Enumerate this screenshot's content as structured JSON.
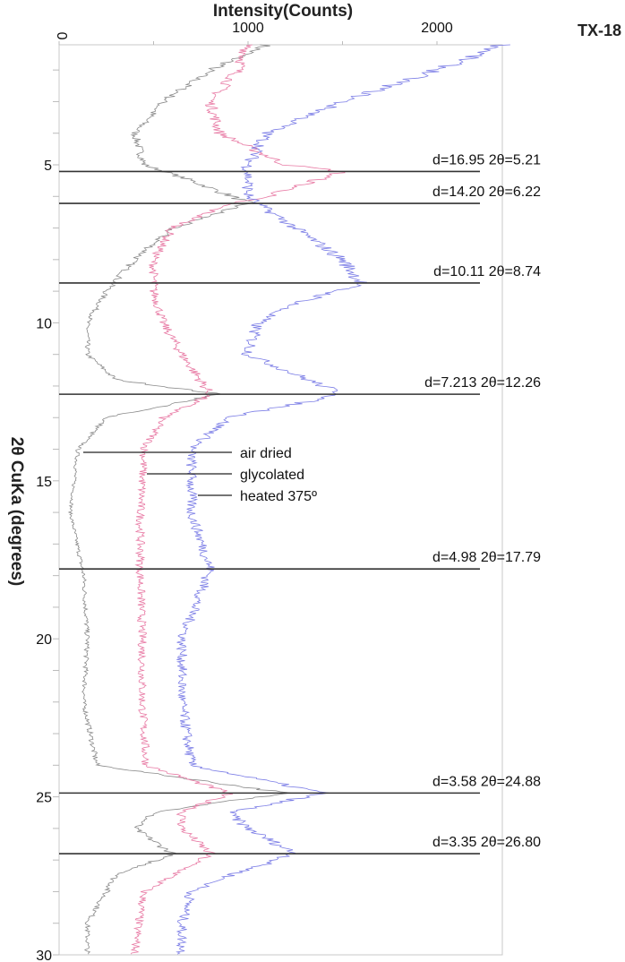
{
  "chart_data": {
    "type": "line",
    "orientation": "vertical (2θ on vertical axis increasing downward, intensity on horizontal axis)",
    "title": "Intensity(Counts)",
    "sample_id": "TX-18",
    "xlabel": "Intensity(Counts)",
    "ylabel": "2θ CuKa (degrees)",
    "xlim": [
      0,
      2350
    ],
    "ylim": [
      1.2,
      30
    ],
    "x_ticks": [
      0,
      500,
      1000,
      1500,
      2000
    ],
    "x_tick_labels": [
      "0",
      "",
      "1000",
      "",
      "2000"
    ],
    "y_ticks": [
      2,
      3,
      4,
      5,
      6,
      7,
      8,
      9,
      10,
      11,
      12,
      13,
      14,
      15,
      16,
      17,
      18,
      19,
      20,
      21,
      22,
      23,
      24,
      25,
      26,
      27,
      28,
      29,
      30
    ],
    "y_tick_labels": [
      "5",
      "10",
      "15",
      "20",
      "25",
      "30"
    ],
    "grid": false,
    "series": [
      {
        "name": "air dried",
        "color": "#8a8a8a",
        "two_theta": [
          1.2,
          2,
          3,
          4,
          5,
          5.5,
          6.2,
          7,
          8,
          9,
          10,
          11,
          11.8,
          12.26,
          13,
          14,
          16,
          18,
          20,
          22,
          24,
          24.88,
          25.5,
          26,
          26.8,
          27.5,
          28,
          29,
          30
        ],
        "counts": [
          1100,
          800,
          550,
          400,
          450,
          700,
          1000,
          600,
          400,
          250,
          150,
          150,
          300,
          850,
          250,
          100,
          60,
          130,
          150,
          130,
          200,
          1200,
          500,
          400,
          600,
          300,
          250,
          150,
          150
        ]
      },
      {
        "name": "glycolated",
        "color": "#e87aa4",
        "two_theta": [
          1.2,
          2,
          3,
          4,
          5,
          5.21,
          6,
          6.22,
          7,
          8,
          9,
          10,
          11,
          12.26,
          13,
          14,
          16,
          18,
          20,
          22,
          24,
          24.88,
          25.5,
          26,
          26.8,
          27.5,
          28,
          29,
          30
        ],
        "counts": [
          1000,
          950,
          800,
          850,
          1200,
          1500,
          1100,
          900,
          600,
          500,
          500,
          550,
          650,
          800,
          550,
          450,
          430,
          430,
          440,
          440,
          460,
          900,
          650,
          650,
          800,
          600,
          450,
          420,
          400
        ]
      },
      {
        "name": "heated 375º",
        "color": "#7b7de6",
        "two_theta": [
          1.2,
          2,
          3,
          4,
          5,
          6,
          6.22,
          7,
          8,
          8.74,
          9.5,
          10,
          11,
          12.26,
          13,
          14,
          16,
          17.79,
          20,
          22,
          24,
          24.88,
          25.5,
          26,
          26.8,
          27.5,
          28,
          29,
          30
        ],
        "counts": [
          2350,
          2000,
          1500,
          1100,
          1000,
          1000,
          1050,
          1250,
          1500,
          1600,
          1200,
          1050,
          1000,
          1500,
          900,
          700,
          700,
          800,
          650,
          650,
          700,
          1400,
          900,
          1000,
          1250,
          900,
          700,
          650,
          650
        ]
      }
    ],
    "annotations": [
      {
        "two_theta": 5.21,
        "label": "d=16.95 2θ=5.21"
      },
      {
        "two_theta": 6.22,
        "label": "d=14.20 2θ=6.22"
      },
      {
        "two_theta": 8.74,
        "label": "d=10.11 2θ=8.74"
      },
      {
        "two_theta": 12.26,
        "label": "d=7.213 2θ=12.26"
      },
      {
        "two_theta": 17.79,
        "label": "d=4.98 2θ=17.79"
      },
      {
        "two_theta": 24.88,
        "label": "d=3.58 2θ=24.88"
      },
      {
        "two_theta": 26.8,
        "label": "d=3.35 2θ=26.80"
      }
    ],
    "legend": {
      "position": "inside-center",
      "entries": [
        "air dried",
        "glycolated",
        "heated 375º"
      ]
    }
  }
}
